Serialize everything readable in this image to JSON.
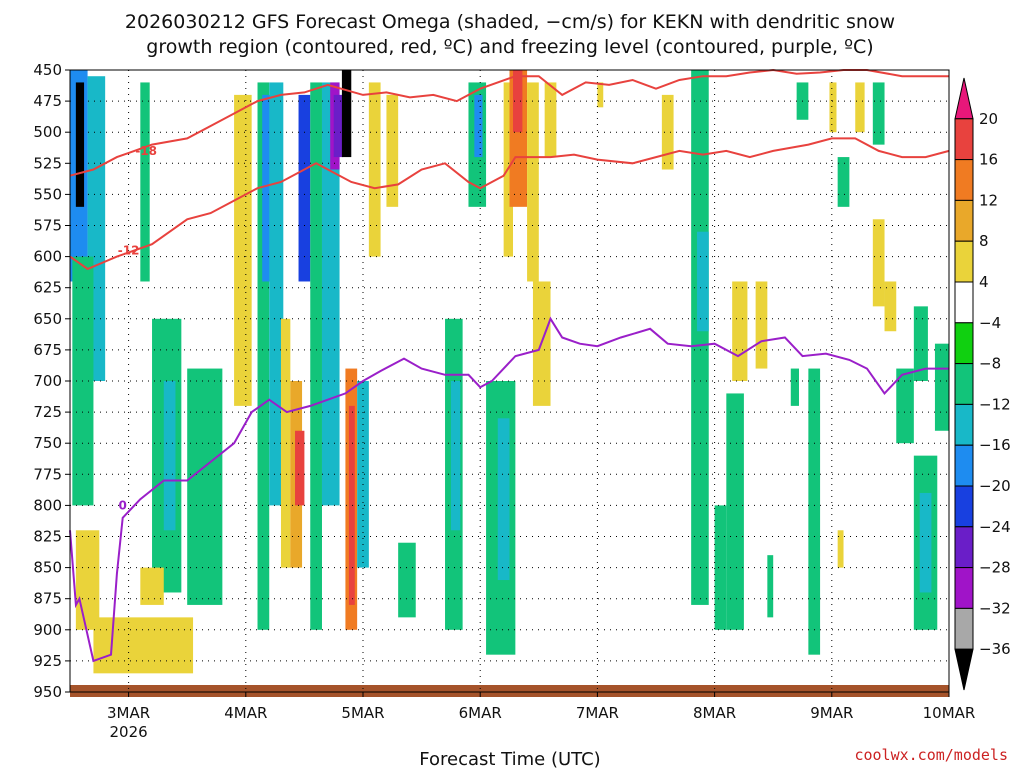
{
  "chart_data": {
    "type": "heatmap",
    "title_line1": "2026030212 GFS Forecast Omega (shaded, −cm/s) for KEKN with dendritic snow",
    "title_line2": "growth region (contoured, red, ºC) and freezing level (contoured, purple, ºC)",
    "xlabel": "Forecast Time (UTC)",
    "credit": "coolwx.com/models",
    "x_range": [
      -0.5,
      7.0
    ],
    "x_ticks": [
      {
        "x": 0,
        "label": "3MAR",
        "sub": "2026"
      },
      {
        "x": 1,
        "label": "4MAR",
        "sub": ""
      },
      {
        "x": 2,
        "label": "5MAR",
        "sub": ""
      },
      {
        "x": 3,
        "label": "6MAR",
        "sub": ""
      },
      {
        "x": 4,
        "label": "7MAR",
        "sub": ""
      },
      {
        "x": 5,
        "label": "8MAR",
        "sub": ""
      },
      {
        "x": 6,
        "label": "9MAR",
        "sub": ""
      },
      {
        "x": 7,
        "label": "10MAR",
        "sub": ""
      }
    ],
    "y_range": [
      450,
      950
    ],
    "y_ticks": [
      "450",
      "475",
      "500",
      "525",
      "550",
      "575",
      "600",
      "625",
      "650",
      "675",
      "700",
      "725",
      "750",
      "775",
      "800",
      "825",
      "850",
      "875",
      "900",
      "925",
      "950"
    ],
    "colorbar": {
      "labels": [
        "20",
        "16",
        "12",
        "8",
        "4",
        "−4",
        "−8",
        "−12",
        "−16",
        "−20",
        "−24",
        "−28",
        "−32",
        "−36"
      ],
      "colors": [
        "#e8177a",
        "#e8423e",
        "#f07b22",
        "#e9a82a",
        "#ead33a",
        "#ffffff",
        "#10d010",
        "#12c47a",
        "#18b8c8",
        "#1e8cf0",
        "#1840e0",
        "#6a1ec8",
        "#a014c8",
        "#a8a8a8",
        "#000000"
      ]
    },
    "shading": [
      {
        "x0": -0.5,
        "x1": -0.35,
        "p0": 450,
        "p1": 620,
        "v": -16
      },
      {
        "x0": -0.45,
        "x1": -0.38,
        "p0": 460,
        "p1": 560,
        "v": -36
      },
      {
        "x0": -0.35,
        "x1": -0.2,
        "p0": 455,
        "p1": 700,
        "v": -12
      },
      {
        "x0": -0.48,
        "x1": -0.3,
        "p0": 600,
        "p1": 800,
        "v": -8
      },
      {
        "x0": -0.45,
        "x1": -0.25,
        "p0": 820,
        "p1": 900,
        "v": 4
      },
      {
        "x0": -0.3,
        "x1": 0.55,
        "p0": 890,
        "p1": 935,
        "v": 4
      },
      {
        "x0": 0.1,
        "x1": 0.18,
        "p0": 460,
        "p1": 620,
        "v": -8
      },
      {
        "x0": 0.2,
        "x1": 0.45,
        "p0": 650,
        "p1": 870,
        "v": -8
      },
      {
        "x0": 0.3,
        "x1": 0.4,
        "p0": 700,
        "p1": 820,
        "v": -12
      },
      {
        "x0": 0.5,
        "x1": 0.8,
        "p0": 690,
        "p1": 880,
        "v": -8
      },
      {
        "x0": 0.1,
        "x1": 0.3,
        "p0": 850,
        "p1": 880,
        "v": 4
      },
      {
        "x0": 0.9,
        "x1": 1.05,
        "p0": 470,
        "p1": 720,
        "v": 4
      },
      {
        "x0": 1.1,
        "x1": 1.2,
        "p0": 460,
        "p1": 900,
        "v": -8
      },
      {
        "x0": 1.14,
        "x1": 1.22,
        "p0": 470,
        "p1": 620,
        "v": -16
      },
      {
        "x0": 1.2,
        "x1": 1.32,
        "p0": 460,
        "p1": 800,
        "v": -12
      },
      {
        "x0": 1.3,
        "x1": 1.38,
        "p0": 650,
        "p1": 850,
        "v": 4
      },
      {
        "x0": 1.38,
        "x1": 1.48,
        "p0": 700,
        "p1": 850,
        "v": 8
      },
      {
        "x0": 1.42,
        "x1": 1.5,
        "p0": 740,
        "p1": 800,
        "v": 16
      },
      {
        "x0": 1.45,
        "x1": 1.55,
        "p0": 470,
        "p1": 620,
        "v": -20
      },
      {
        "x0": 1.55,
        "x1": 1.65,
        "p0": 460,
        "p1": 900,
        "v": -8
      },
      {
        "x0": 1.65,
        "x1": 1.8,
        "p0": 460,
        "p1": 800,
        "v": -12
      },
      {
        "x0": 1.72,
        "x1": 1.8,
        "p0": 460,
        "p1": 530,
        "v": -28
      },
      {
        "x0": 1.75,
        "x1": 1.83,
        "p0": 470,
        "p1": 520,
        "v": -24
      },
      {
        "x0": 1.82,
        "x1": 1.9,
        "p0": 450,
        "p1": 520,
        "v": -36
      },
      {
        "x0": 1.85,
        "x1": 1.95,
        "p0": 690,
        "p1": 900,
        "v": 12
      },
      {
        "x0": 1.88,
        "x1": 1.93,
        "p0": 720,
        "p1": 880,
        "v": 16
      },
      {
        "x0": 1.95,
        "x1": 2.05,
        "p0": 700,
        "p1": 850,
        "v": -12
      },
      {
        "x0": 2.05,
        "x1": 2.15,
        "p0": 460,
        "p1": 600,
        "v": 4
      },
      {
        "x0": 2.2,
        "x1": 2.3,
        "p0": 470,
        "p1": 560,
        "v": 4
      },
      {
        "x0": 2.3,
        "x1": 2.45,
        "p0": 830,
        "p1": 890,
        "v": -8
      },
      {
        "x0": 2.7,
        "x1": 2.85,
        "p0": 650,
        "p1": 900,
        "v": -8
      },
      {
        "x0": 2.75,
        "x1": 2.83,
        "p0": 700,
        "p1": 820,
        "v": -12
      },
      {
        "x0": 2.9,
        "x1": 3.05,
        "p0": 460,
        "p1": 560,
        "v": -8
      },
      {
        "x0": 2.95,
        "x1": 3.02,
        "p0": 470,
        "p1": 520,
        "v": -16
      },
      {
        "x0": 3.05,
        "x1": 3.3,
        "p0": 700,
        "p1": 920,
        "v": -8
      },
      {
        "x0": 3.15,
        "x1": 3.25,
        "p0": 730,
        "p1": 860,
        "v": -12
      },
      {
        "x0": 3.2,
        "x1": 3.28,
        "p0": 460,
        "p1": 600,
        "v": 4
      },
      {
        "x0": 3.25,
        "x1": 3.4,
        "p0": 450,
        "p1": 560,
        "v": 12
      },
      {
        "x0": 3.28,
        "x1": 3.36,
        "p0": 450,
        "p1": 500,
        "v": 16
      },
      {
        "x0": 3.4,
        "x1": 3.5,
        "p0": 460,
        "p1": 620,
        "v": 4
      },
      {
        "x0": 3.55,
        "x1": 3.65,
        "p0": 460,
        "p1": 520,
        "v": 4
      },
      {
        "x0": 3.45,
        "x1": 3.6,
        "p0": 620,
        "p1": 720,
        "v": 4
      },
      {
        "x0": 4.0,
        "x1": 4.05,
        "p0": 460,
        "p1": 480,
        "v": 4
      },
      {
        "x0": 4.55,
        "x1": 4.65,
        "p0": 470,
        "p1": 530,
        "v": 4
      },
      {
        "x0": 4.8,
        "x1": 4.95,
        "p0": 450,
        "p1": 880,
        "v": -8
      },
      {
        "x0": 4.85,
        "x1": 4.95,
        "p0": 580,
        "p1": 660,
        "v": -12
      },
      {
        "x0": 5.0,
        "x1": 5.1,
        "p0": 800,
        "p1": 900,
        "v": -8
      },
      {
        "x0": 5.15,
        "x1": 5.28,
        "p0": 620,
        "p1": 700,
        "v": 4
      },
      {
        "x0": 5.1,
        "x1": 5.25,
        "p0": 710,
        "p1": 900,
        "v": -8
      },
      {
        "x0": 5.45,
        "x1": 5.5,
        "p0": 840,
        "p1": 890,
        "v": -8
      },
      {
        "x0": 5.35,
        "x1": 5.45,
        "p0": 620,
        "p1": 690,
        "v": 4
      },
      {
        "x0": 5.7,
        "x1": 5.8,
        "p0": 460,
        "p1": 490,
        "v": -8
      },
      {
        "x0": 5.65,
        "x1": 5.72,
        "p0": 690,
        "p1": 720,
        "v": -8
      },
      {
        "x0": 5.8,
        "x1": 5.9,
        "p0": 690,
        "p1": 920,
        "v": -8
      },
      {
        "x0": 5.98,
        "x1": 6.04,
        "p0": 460,
        "p1": 500,
        "v": 4
      },
      {
        "x0": 6.05,
        "x1": 6.15,
        "p0": 520,
        "p1": 560,
        "v": -8
      },
      {
        "x0": 6.05,
        "x1": 6.1,
        "p0": 820,
        "p1": 850,
        "v": 4
      },
      {
        "x0": 6.2,
        "x1": 6.28,
        "p0": 460,
        "p1": 500,
        "v": 4
      },
      {
        "x0": 6.35,
        "x1": 6.45,
        "p0": 460,
        "p1": 510,
        "v": -8
      },
      {
        "x0": 6.35,
        "x1": 6.45,
        "p0": 570,
        "p1": 640,
        "v": 4
      },
      {
        "x0": 6.45,
        "x1": 6.55,
        "p0": 620,
        "p1": 660,
        "v": 4
      },
      {
        "x0": 6.55,
        "x1": 6.7,
        "p0": 690,
        "p1": 750,
        "v": -8
      },
      {
        "x0": 6.7,
        "x1": 6.82,
        "p0": 640,
        "p1": 700,
        "v": -8
      },
      {
        "x0": 6.7,
        "x1": 6.9,
        "p0": 760,
        "p1": 900,
        "v": -8
      },
      {
        "x0": 6.75,
        "x1": 6.85,
        "p0": 790,
        "p1": 870,
        "v": -12
      },
      {
        "x0": 6.88,
        "x1": 7.0,
        "p0": 670,
        "p1": 740,
        "v": -8
      }
    ],
    "contours_red": [
      {
        "label": "-18",
        "points": [
          [
            -0.5,
            535
          ],
          [
            -0.3,
            530
          ],
          [
            -0.1,
            520
          ],
          [
            0.2,
            510
          ],
          [
            0.5,
            505
          ],
          [
            0.7,
            495
          ],
          [
            0.9,
            485
          ],
          [
            1.1,
            475
          ],
          [
            1.3,
            470
          ],
          [
            1.5,
            468
          ],
          [
            1.7,
            462
          ],
          [
            2.0,
            470
          ],
          [
            2.2,
            468
          ],
          [
            2.4,
            472
          ],
          [
            2.6,
            470
          ],
          [
            2.8,
            475
          ],
          [
            3.0,
            465
          ],
          [
            3.3,
            455
          ],
          [
            3.5,
            455
          ],
          [
            3.7,
            470
          ],
          [
            3.9,
            460
          ],
          [
            4.1,
            462
          ],
          [
            4.3,
            458
          ],
          [
            4.5,
            465
          ],
          [
            4.7,
            458
          ],
          [
            4.9,
            455
          ],
          [
            5.1,
            455
          ],
          [
            5.3,
            452
          ],
          [
            5.5,
            450
          ],
          [
            5.7,
            453
          ],
          [
            5.9,
            452
          ],
          [
            6.1,
            450
          ],
          [
            6.3,
            450
          ],
          [
            6.6,
            455
          ],
          [
            7.0,
            455
          ]
        ],
        "label_at": [
          0.15,
          515
        ]
      },
      {
        "label": "-12",
        "points": [
          [
            -0.5,
            600
          ],
          [
            -0.35,
            610
          ],
          [
            -0.1,
            600
          ],
          [
            0.2,
            590
          ],
          [
            0.5,
            570
          ],
          [
            0.7,
            565
          ],
          [
            0.9,
            555
          ],
          [
            1.1,
            545
          ],
          [
            1.3,
            540
          ],
          [
            1.6,
            525
          ],
          [
            1.9,
            540
          ],
          [
            2.1,
            545
          ],
          [
            2.3,
            542
          ],
          [
            2.5,
            530
          ],
          [
            2.7,
            525
          ],
          [
            2.9,
            540
          ],
          [
            3.0,
            545
          ],
          [
            3.2,
            535
          ],
          [
            3.3,
            520
          ],
          [
            3.6,
            520
          ],
          [
            3.8,
            518
          ],
          [
            4.0,
            522
          ],
          [
            4.3,
            525
          ],
          [
            4.5,
            520
          ],
          [
            4.7,
            515
          ],
          [
            4.9,
            518
          ],
          [
            5.1,
            515
          ],
          [
            5.3,
            520
          ],
          [
            5.5,
            515
          ],
          [
            5.8,
            510
          ],
          [
            6.0,
            505
          ],
          [
            6.2,
            505
          ],
          [
            6.4,
            515
          ],
          [
            6.6,
            520
          ],
          [
            6.8,
            520
          ],
          [
            7.0,
            515
          ]
        ],
        "label_at": [
          0.0,
          595
        ]
      }
    ],
    "contour_purple": {
      "label": "0",
      "points": [
        [
          -0.5,
          820
        ],
        [
          -0.45,
          880
        ],
        [
          -0.42,
          875
        ],
        [
          -0.3,
          925
        ],
        [
          -0.15,
          920
        ],
        [
          -0.1,
          855
        ],
        [
          -0.05,
          810
        ],
        [
          0.1,
          795
        ],
        [
          0.3,
          780
        ],
        [
          0.5,
          780
        ],
        [
          0.7,
          765
        ],
        [
          0.9,
          750
        ],
        [
          1.05,
          725
        ],
        [
          1.2,
          715
        ],
        [
          1.35,
          725
        ],
        [
          1.55,
          720
        ],
        [
          1.7,
          715
        ],
        [
          1.85,
          710
        ],
        [
          2.0,
          700
        ],
        [
          2.15,
          692
        ],
        [
          2.35,
          682
        ],
        [
          2.5,
          690
        ],
        [
          2.7,
          695
        ],
        [
          2.9,
          695
        ],
        [
          3.0,
          705
        ],
        [
          3.1,
          700
        ],
        [
          3.3,
          680
        ],
        [
          3.5,
          675
        ],
        [
          3.6,
          650
        ],
        [
          3.7,
          665
        ],
        [
          3.85,
          670
        ],
        [
          4.0,
          672
        ],
        [
          4.2,
          665
        ],
        [
          4.45,
          658
        ],
        [
          4.6,
          670
        ],
        [
          4.8,
          672
        ],
        [
          5.0,
          670
        ],
        [
          5.2,
          680
        ],
        [
          5.4,
          668
        ],
        [
          5.6,
          665
        ],
        [
          5.75,
          680
        ],
        [
          5.95,
          678
        ],
        [
          6.15,
          683
        ],
        [
          6.3,
          690
        ],
        [
          6.45,
          710
        ],
        [
          6.6,
          695
        ],
        [
          6.8,
          690
        ],
        [
          7.0,
          690
        ]
      ],
      "label_at": [
        -0.05,
        800
      ]
    }
  }
}
